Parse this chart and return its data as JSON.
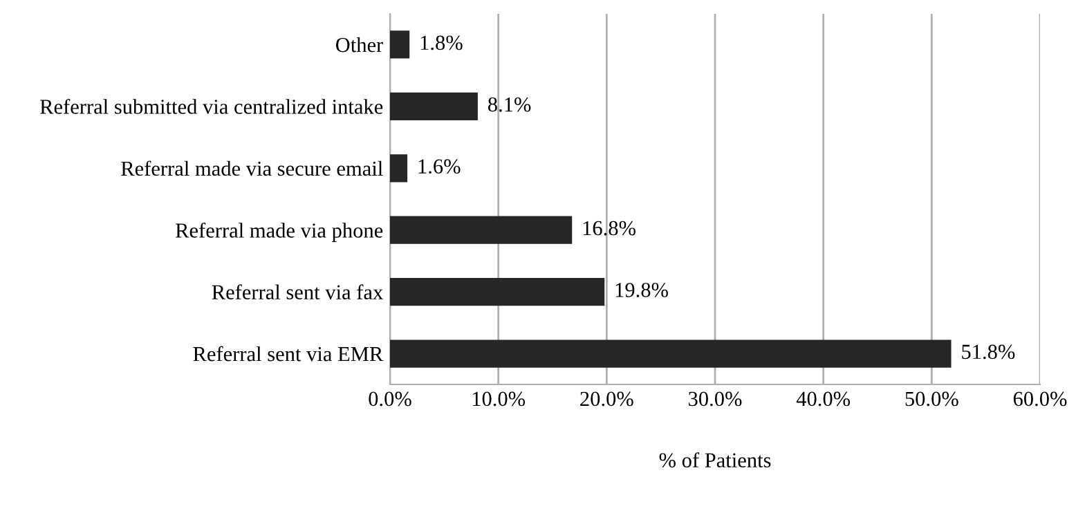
{
  "chart_data": {
    "type": "bar",
    "orientation": "horizontal",
    "xlabel": "% of Patients",
    "categories": [
      "Other",
      "Referral submitted via centralized intake",
      "Referral made via secure email",
      "Referral made via phone",
      "Referral sent via fax",
      "Referral sent via EMR"
    ],
    "values": [
      1.8,
      8.1,
      1.6,
      16.8,
      19.8,
      51.8
    ],
    "value_labels": [
      "1.8%",
      "8.1%",
      "1.6%",
      "16.8%",
      "19.8%",
      "51.8%"
    ],
    "color": "#262626",
    "xlim": [
      0,
      60
    ],
    "xticks": [
      {
        "value": 0,
        "label": "0.0%"
      },
      {
        "value": 10,
        "label": "10.0%"
      },
      {
        "value": 20,
        "label": "20.0%"
      },
      {
        "value": 30,
        "label": "30.0%"
      },
      {
        "value": 40,
        "label": "40.0%"
      },
      {
        "value": 50,
        "label": "50.0%"
      },
      {
        "value": 60,
        "label": "60.0%"
      }
    ],
    "grid": "x"
  }
}
